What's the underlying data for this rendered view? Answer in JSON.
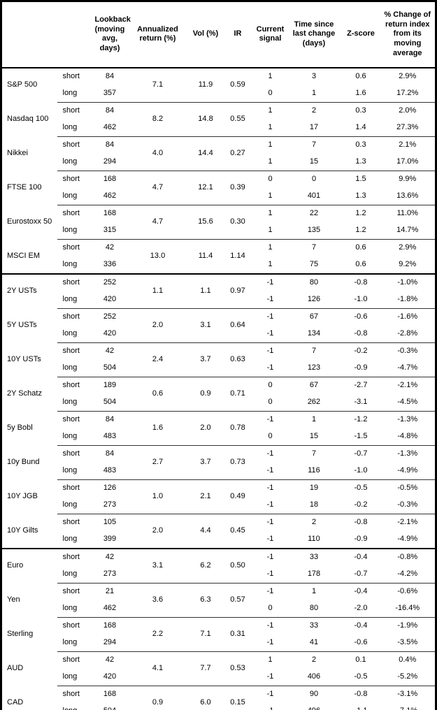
{
  "colors": {
    "border": "#000000",
    "text": "#000000",
    "background": "#ffffff",
    "group_divider": "#333333"
  },
  "table": {
    "column_headers": [
      "",
      "",
      "Lookback (moving avg, days)",
      "Annualized return (%)",
      "Vol (%)",
      "IR",
      "Current signal",
      "Time since last change (days)",
      "Z-score",
      "% Change of return index from its moving average"
    ],
    "sections": [
      {
        "groups": [
          {
            "asset": "S&P 500",
            "annualized_return": "7.1",
            "vol": "11.9",
            "ir": "0.59",
            "rows": [
              {
                "leg": "short",
                "lookback": "84",
                "current_signal": "1",
                "time_since_last_change": "3",
                "z_score": "0.6",
                "pct_change_from_ma": "2.9%"
              },
              {
                "leg": "long",
                "lookback": "357",
                "current_signal": "0",
                "time_since_last_change": "1",
                "z_score": "1.6",
                "pct_change_from_ma": "17.2%"
              }
            ]
          },
          {
            "asset": "Nasdaq 100",
            "annualized_return": "8.2",
            "vol": "14.8",
            "ir": "0.55",
            "rows": [
              {
                "leg": "short",
                "lookback": "84",
                "current_signal": "1",
                "time_since_last_change": "2",
                "z_score": "0.3",
                "pct_change_from_ma": "2.0%"
              },
              {
                "leg": "long",
                "lookback": "462",
                "current_signal": "1",
                "time_since_last_change": "17",
                "z_score": "1.4",
                "pct_change_from_ma": "27.3%"
              }
            ]
          },
          {
            "asset": "Nikkei",
            "annualized_return": "4.0",
            "vol": "14.4",
            "ir": "0.27",
            "rows": [
              {
                "leg": "short",
                "lookback": "84",
                "current_signal": "1",
                "time_since_last_change": "7",
                "z_score": "0.3",
                "pct_change_from_ma": "2.1%"
              },
              {
                "leg": "long",
                "lookback": "294",
                "current_signal": "1",
                "time_since_last_change": "15",
                "z_score": "1.3",
                "pct_change_from_ma": "17.0%"
              }
            ]
          },
          {
            "asset": "FTSE 100",
            "annualized_return": "4.7",
            "vol": "12.1",
            "ir": "0.39",
            "rows": [
              {
                "leg": "short",
                "lookback": "168",
                "current_signal": "0",
                "time_since_last_change": "0",
                "z_score": "1.5",
                "pct_change_from_ma": "9.9%"
              },
              {
                "leg": "long",
                "lookback": "462",
                "current_signal": "1",
                "time_since_last_change": "401",
                "z_score": "1.3",
                "pct_change_from_ma": "13.6%"
              }
            ]
          },
          {
            "asset": "Eurostoxx 50",
            "annualized_return": "4.7",
            "vol": "15.6",
            "ir": "0.30",
            "rows": [
              {
                "leg": "short",
                "lookback": "168",
                "current_signal": "1",
                "time_since_last_change": "22",
                "z_score": "1.2",
                "pct_change_from_ma": "11.0%"
              },
              {
                "leg": "long",
                "lookback": "315",
                "current_signal": "1",
                "time_since_last_change": "135",
                "z_score": "1.2",
                "pct_change_from_ma": "14.7%"
              }
            ]
          },
          {
            "asset": "MSCI EM",
            "annualized_return": "13.0",
            "vol": "11.4",
            "ir": "1.14",
            "rows": [
              {
                "leg": "short",
                "lookback": "42",
                "current_signal": "1",
                "time_since_last_change": "7",
                "z_score": "0.6",
                "pct_change_from_ma": "2.9%"
              },
              {
                "leg": "long",
                "lookback": "336",
                "current_signal": "1",
                "time_since_last_change": "75",
                "z_score": "0.6",
                "pct_change_from_ma": "9.2%"
              }
            ]
          }
        ]
      },
      {
        "groups": [
          {
            "asset": "2Y USTs",
            "annualized_return": "1.1",
            "vol": "1.1",
            "ir": "0.97",
            "rows": [
              {
                "leg": "short",
                "lookback": "252",
                "current_signal": "-1",
                "time_since_last_change": "80",
                "z_score": "-0.8",
                "pct_change_from_ma": "-1.0%"
              },
              {
                "leg": "long",
                "lookback": "420",
                "current_signal": "-1",
                "time_since_last_change": "126",
                "z_score": "-1.0",
                "pct_change_from_ma": "-1.8%"
              }
            ]
          },
          {
            "asset": "5Y USTs",
            "annualized_return": "2.0",
            "vol": "3.1",
            "ir": "0.64",
            "rows": [
              {
                "leg": "short",
                "lookback": "252",
                "current_signal": "-1",
                "time_since_last_change": "67",
                "z_score": "-0.6",
                "pct_change_from_ma": "-1.6%"
              },
              {
                "leg": "long",
                "lookback": "420",
                "current_signal": "-1",
                "time_since_last_change": "134",
                "z_score": "-0.8",
                "pct_change_from_ma": "-2.8%"
              }
            ]
          },
          {
            "asset": "10Y USTs",
            "annualized_return": "2.4",
            "vol": "3.7",
            "ir": "0.63",
            "rows": [
              {
                "leg": "short",
                "lookback": "42",
                "current_signal": "-1",
                "time_since_last_change": "7",
                "z_score": "-0.2",
                "pct_change_from_ma": "-0.3%"
              },
              {
                "leg": "long",
                "lookback": "504",
                "current_signal": "-1",
                "time_since_last_change": "123",
                "z_score": "-0.9",
                "pct_change_from_ma": "-4.7%"
              }
            ]
          },
          {
            "asset": "2Y Schatz",
            "annualized_return": "0.6",
            "vol": "0.9",
            "ir": "0.71",
            "rows": [
              {
                "leg": "short",
                "lookback": "189",
                "current_signal": "0",
                "time_since_last_change": "67",
                "z_score": "-2.7",
                "pct_change_from_ma": "-2.1%"
              },
              {
                "leg": "long",
                "lookback": "504",
                "current_signal": "0",
                "time_since_last_change": "262",
                "z_score": "-3.1",
                "pct_change_from_ma": "-4.5%"
              }
            ]
          },
          {
            "asset": "5y Bobl",
            "annualized_return": "1.6",
            "vol": "2.0",
            "ir": "0.78",
            "rows": [
              {
                "leg": "short",
                "lookback": "84",
                "current_signal": "-1",
                "time_since_last_change": "1",
                "z_score": "-1.2",
                "pct_change_from_ma": "-1.3%"
              },
              {
                "leg": "long",
                "lookback": "483",
                "current_signal": "0",
                "time_since_last_change": "15",
                "z_score": "-1.5",
                "pct_change_from_ma": "-4.8%"
              }
            ]
          },
          {
            "asset": "10y Bund",
            "annualized_return": "2.7",
            "vol": "3.7",
            "ir": "0.73",
            "rows": [
              {
                "leg": "short",
                "lookback": "84",
                "current_signal": "-1",
                "time_since_last_change": "7",
                "z_score": "-0.7",
                "pct_change_from_ma": "-1.3%"
              },
              {
                "leg": "long",
                "lookback": "483",
                "current_signal": "-1",
                "time_since_last_change": "116",
                "z_score": "-1.0",
                "pct_change_from_ma": "-4.9%"
              }
            ]
          },
          {
            "asset": "10Y JGB",
            "annualized_return": "1.0",
            "vol": "2.1",
            "ir": "0.49",
            "rows": [
              {
                "leg": "short",
                "lookback": "126",
                "current_signal": "-1",
                "time_since_last_change": "19",
                "z_score": "-0.5",
                "pct_change_from_ma": "-0.5%"
              },
              {
                "leg": "long",
                "lookback": "273",
                "current_signal": "-1",
                "time_since_last_change": "18",
                "z_score": "-0.2",
                "pct_change_from_ma": "-0.3%"
              }
            ]
          },
          {
            "asset": "10Y Gilts",
            "annualized_return": "2.0",
            "vol": "4.4",
            "ir": "0.45",
            "rows": [
              {
                "leg": "short",
                "lookback": "105",
                "current_signal": "-1",
                "time_since_last_change": "2",
                "z_score": "-0.8",
                "pct_change_from_ma": "-2.1%"
              },
              {
                "leg": "long",
                "lookback": "399",
                "current_signal": "-1",
                "time_since_last_change": "110",
                "z_score": "-0.9",
                "pct_change_from_ma": "-4.9%"
              }
            ]
          }
        ]
      },
      {
        "groups": [
          {
            "asset": "Euro",
            "annualized_return": "3.1",
            "vol": "6.2",
            "ir": "0.50",
            "rows": [
              {
                "leg": "short",
                "lookback": "42",
                "current_signal": "-1",
                "time_since_last_change": "33",
                "z_score": "-0.4",
                "pct_change_from_ma": "-0.8%"
              },
              {
                "leg": "long",
                "lookback": "273",
                "current_signal": "-1",
                "time_since_last_change": "178",
                "z_score": "-0.7",
                "pct_change_from_ma": "-4.2%"
              }
            ]
          },
          {
            "asset": "Yen",
            "annualized_return": "3.6",
            "vol": "6.3",
            "ir": "0.57",
            "rows": [
              {
                "leg": "short",
                "lookback": "21",
                "current_signal": "-1",
                "time_since_last_change": "1",
                "z_score": "-0.4",
                "pct_change_from_ma": "-0.6%"
              },
              {
                "leg": "long",
                "lookback": "462",
                "current_signal": "0",
                "time_since_last_change": "80",
                "z_score": "-2.0",
                "pct_change_from_ma": "-16.4%"
              }
            ]
          },
          {
            "asset": "Sterling",
            "annualized_return": "2.2",
            "vol": "7.1",
            "ir": "0.31",
            "rows": [
              {
                "leg": "short",
                "lookback": "168",
                "current_signal": "-1",
                "time_since_last_change": "33",
                "z_score": "-0.4",
                "pct_change_from_ma": "-1.9%"
              },
              {
                "leg": "long",
                "lookback": "294",
                "current_signal": "-1",
                "time_since_last_change": "41",
                "z_score": "-0.6",
                "pct_change_from_ma": "-3.5%"
              }
            ]
          },
          {
            "asset": "AUD",
            "annualized_return": "4.1",
            "vol": "7.7",
            "ir": "0.53",
            "rows": [
              {
                "leg": "short",
                "lookback": "42",
                "current_signal": "1",
                "time_since_last_change": "2",
                "z_score": "0.1",
                "pct_change_from_ma": "0.4%"
              },
              {
                "leg": "long",
                "lookback": "420",
                "current_signal": "-1",
                "time_since_last_change": "406",
                "z_score": "-0.5",
                "pct_change_from_ma": "-5.2%"
              }
            ]
          },
          {
            "asset": "CAD",
            "annualized_return": "0.9",
            "vol": "6.0",
            "ir": "0.15",
            "rows": [
              {
                "leg": "short",
                "lookback": "168",
                "current_signal": "-1",
                "time_since_last_change": "90",
                "z_score": "-0.8",
                "pct_change_from_ma": "-3.1%"
              },
              {
                "leg": "long",
                "lookback": "504",
                "current_signal": "-1",
                "time_since_last_change": "496",
                "z_score": "-1.1",
                "pct_change_from_ma": "-7.1%"
              }
            ]
          }
        ]
      }
    ]
  }
}
